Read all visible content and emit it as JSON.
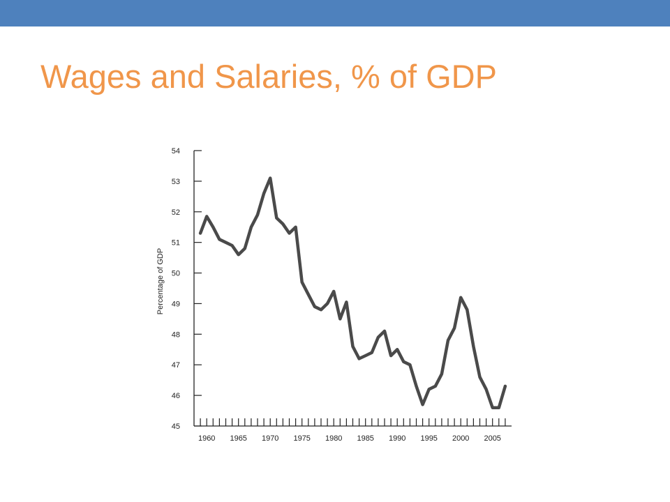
{
  "slide": {
    "title": "Wages and Salaries, % of GDP",
    "accent_color": "#4e81bd",
    "title_color": "#f0964a"
  },
  "chart_data": {
    "type": "line",
    "title": "",
    "xlabel": "",
    "ylabel": "Percentage of GDP",
    "xlim": [
      1958,
      2008
    ],
    "ylim": [
      45,
      54
    ],
    "yticks": [
      45,
      46,
      47,
      48,
      49,
      50,
      51,
      52,
      53,
      54
    ],
    "xtick_labels": [
      1960,
      1965,
      1970,
      1975,
      1980,
      1985,
      1990,
      1995,
      2000,
      2005
    ],
    "xminor_step": 1,
    "grid": false,
    "legend": "none",
    "line_color": "#4a4a4a",
    "series": [
      {
        "x": [
          1959,
          1960,
          1961,
          1962,
          1963,
          1964,
          1965,
          1966,
          1967,
          1968,
          1969,
          1970,
          1971,
          1972,
          1973,
          1974,
          1975,
          1976,
          1977,
          1978,
          1979,
          1980,
          1981,
          1982,
          1983,
          1984,
          1985,
          1986,
          1987,
          1988,
          1989,
          1990,
          1991,
          1992,
          1993,
          1994,
          1995,
          1996,
          1997,
          1998,
          1999,
          2000,
          2001,
          2002,
          2003,
          2004,
          2005,
          2006,
          2007
        ],
        "values": [
          51.3,
          51.85,
          51.5,
          51.1,
          51.0,
          50.9,
          50.6,
          50.8,
          51.5,
          51.9,
          52.6,
          53.1,
          51.8,
          51.6,
          51.3,
          51.5,
          49.7,
          49.3,
          48.9,
          48.8,
          49.0,
          49.4,
          48.5,
          49.05,
          47.6,
          47.2,
          47.3,
          47.4,
          47.9,
          48.1,
          47.3,
          47.5,
          47.1,
          47.0,
          46.3,
          45.7,
          46.2,
          46.3,
          46.7,
          47.8,
          48.2,
          49.2,
          48.8,
          47.6,
          46.6,
          46.2,
          45.6,
          45.6,
          46.3
        ]
      }
    ]
  }
}
